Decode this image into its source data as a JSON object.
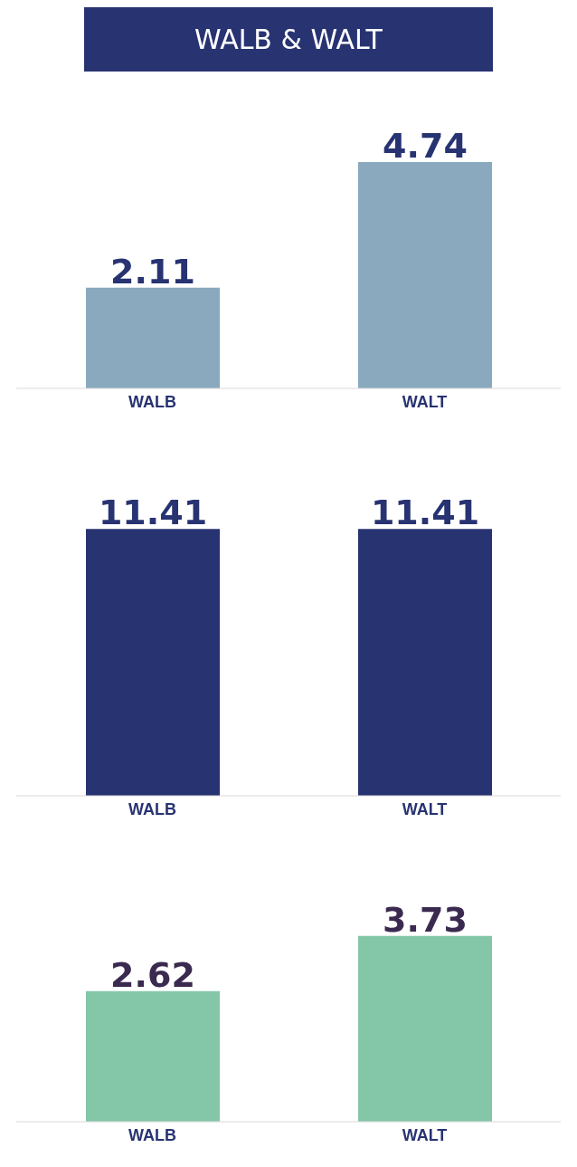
{
  "chart_data": [
    {
      "type": "bar",
      "title": "WALB & WALT",
      "categories": [
        "WALB",
        "WALT"
      ],
      "values": [
        2.11,
        4.74
      ],
      "color": "#8aa9bf",
      "data_labels": true
    },
    {
      "type": "bar",
      "categories": [
        "WALB",
        "WALT"
      ],
      "values": [
        11.41,
        11.41
      ],
      "color": "#283372",
      "data_labels": true
    },
    {
      "type": "bar",
      "categories": [
        "WALB",
        "WALT"
      ],
      "values": [
        2.62,
        3.73
      ],
      "color": "#84c6a8",
      "data_labels": true
    }
  ]
}
